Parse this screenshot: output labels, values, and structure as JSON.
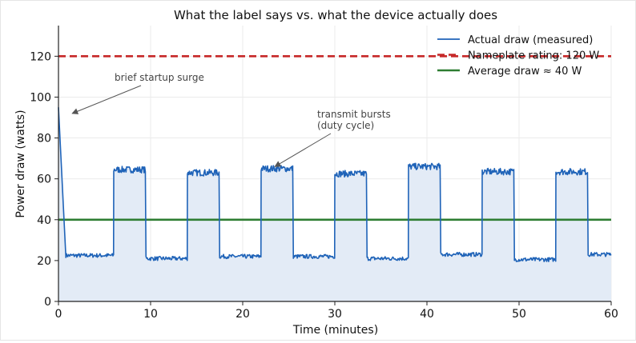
{
  "chart_data": {
    "type": "line",
    "title": "What the label says vs. what the device actually does",
    "xlabel": "Time (minutes)",
    "ylabel": "Power draw (watts)",
    "xlim": [
      0,
      60
    ],
    "ylim": [
      0,
      135
    ],
    "x_ticks": [
      0,
      10,
      20,
      30,
      40,
      50,
      60
    ],
    "y_ticks": [
      0,
      20,
      40,
      60,
      80,
      100,
      120
    ],
    "grid": true,
    "legend_position": "top-right",
    "series": [
      {
        "name": "Actual draw (measured)",
        "color": "#1f63b8",
        "fill_color": "#e3ebf6",
        "startup": {
          "x": [
            0,
            0.8
          ],
          "y": [
            95,
            22
          ]
        },
        "segments": [
          {
            "x_start": 0.8,
            "x_end": 6.0,
            "level": 22.5
          },
          {
            "x_start": 6.0,
            "x_end": 9.5,
            "level": 64.5
          },
          {
            "x_start": 9.5,
            "x_end": 14.0,
            "level": 21.0
          },
          {
            "x_start": 14.0,
            "x_end": 17.5,
            "level": 63.0
          },
          {
            "x_start": 17.5,
            "x_end": 22.0,
            "level": 22.0
          },
          {
            "x_start": 22.0,
            "x_end": 25.5,
            "level": 65.0
          },
          {
            "x_start": 25.5,
            "x_end": 30.0,
            "level": 22.0
          },
          {
            "x_start": 30.0,
            "x_end": 33.5,
            "level": 62.5
          },
          {
            "x_start": 33.5,
            "x_end": 38.0,
            "level": 21.0
          },
          {
            "x_start": 38.0,
            "x_end": 41.5,
            "level": 66.0
          },
          {
            "x_start": 41.5,
            "x_end": 46.0,
            "level": 23.0
          },
          {
            "x_start": 46.0,
            "x_end": 49.5,
            "level": 63.5
          },
          {
            "x_start": 49.5,
            "x_end": 54.0,
            "level": 20.5
          },
          {
            "x_start": 54.0,
            "x_end": 57.5,
            "level": 63.5
          },
          {
            "x_start": 57.5,
            "x_end": 60.0,
            "level": 23.0
          }
        ]
      },
      {
        "name": "Nameplate rating: 120 W",
        "color": "#c62828",
        "style": "dashed",
        "y": 120
      },
      {
        "name": "Average draw ≈ 40 W",
        "color": "#2e7d32",
        "style": "solid",
        "y": 40
      }
    ],
    "annotations": [
      {
        "lines": [
          "brief startup surge"
        ],
        "target": {
          "x": 1.5,
          "y": 92
        }
      },
      {
        "lines": [
          "transmit bursts",
          "(duty cycle)"
        ],
        "target": {
          "x": 23.5,
          "y": 66
        }
      }
    ]
  }
}
